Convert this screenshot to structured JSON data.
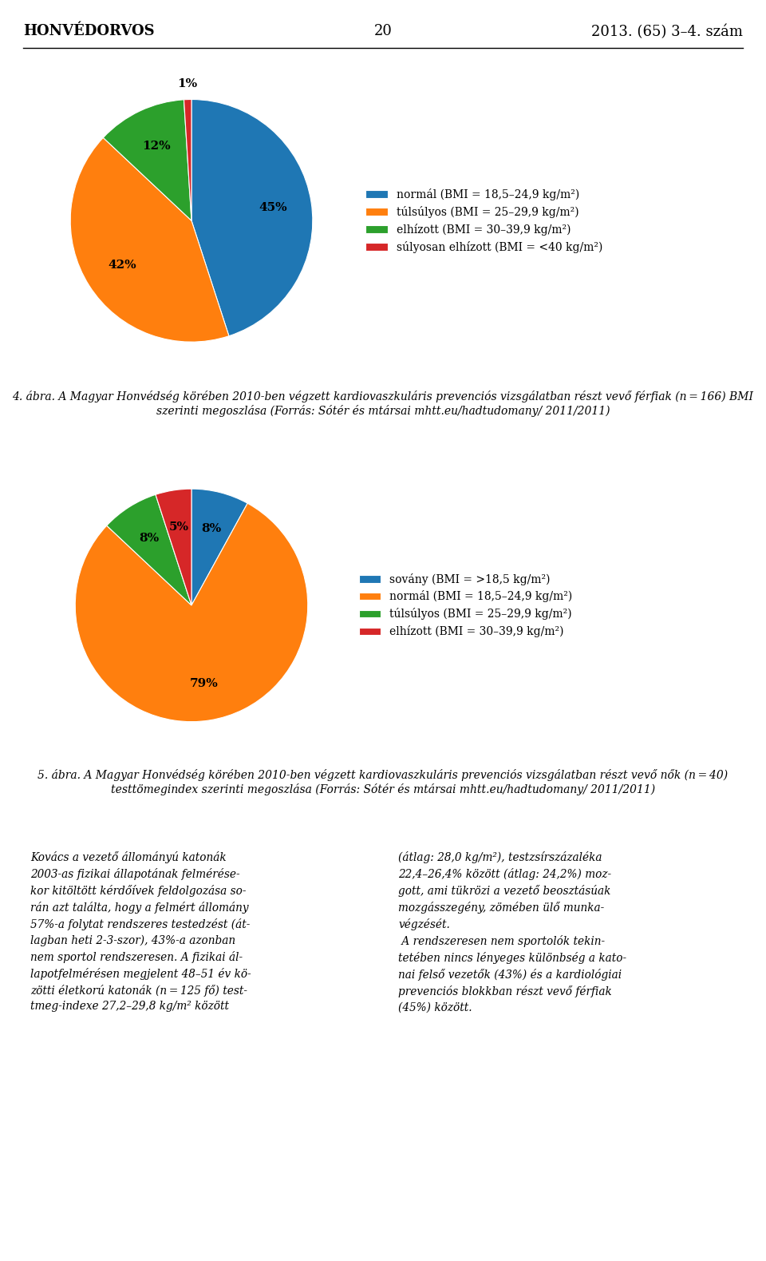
{
  "chart_data": [
    {
      "type": "pie",
      "title": "4. ábra. A Magyar Honvédség körében 2010-ben végzett kardiovaszkuláris prevenciós vizsgálatban részt vevő férfiak (n = 166) BMI szerinti megoszlása (Forrás: Sótér és mtársai mhtt.eu/hadtudomany/ 2011/2011)",
      "annotations": [
        "HONVÉDORVOS",
        "20",
        "2013. (65) 3–4. szám"
      ],
      "categories": [
        "normál (BMI = 18,5–24,9 kg/m²)",
        "túlsúlyos (BMI = 25–29,9 kg/m²)",
        "elhízott (BMI = 30–39,9 kg/m²)",
        "súlyosan elhízott (BMI = <40 kg/m²)"
      ],
      "values": [
        45,
        42,
        12,
        1
      ],
      "value_labels": [
        "45%",
        "42%",
        "12%",
        "1%"
      ],
      "data_labels": true,
      "legend": "center left"
    },
    {
      "type": "pie",
      "title": "5. ábra. A Magyar Honvédség körében 2010-ben végzett kardiovaszkuláris prevenciós vizsgálatban részt vevő nők (n = 40) testtömegindex szerinti megoszlása (Forrás: Sótér és mtársai mhtt.eu/hadtudomany/ 2011/2011)",
      "annotations": [
        "Kovács a vezető állományú katonák\n2003-as fizikai állapotának felmérése-\nkor kitöltött kérdőívek feldolgozása so-\nrán azt találta, hogy a felmért állomány\n57%-a folytat rendszeres testedzést (át-\nlagban heti 2-3-szor), 43%-a azonban\nnem sportol rendszeresen. A fizikai ál-\nlapotfelmérésen megjelent 48–51 év kö-\nzötti életkorú katonák (n = 125 fő) test-\ntmeg-indexe 27,2–29,8 kg/m² között",
        "(átlag: 28,0 kg/m²), testzsírszázaléka\n22,4–26,4% között (átlag: 24,2%) moz-\ngott, ami tükrözi a vezető beosztásúak\nmozgásszegény, zömében ülő munka-\nvégzését.\n A rendszeresen nem sportolók tekin-\ntetében nincs lényeges különbség a kato-\nnai felső vezetők (43%) és a kardiológiai\nprevenciós blokkban részt vevő férfiak\n(45%) között."
      ],
      "categories": [
        "sovány (BMI = >18,5 kg/m²)",
        "normál (BMI = 18,5–24,9 kg/m²)",
        "túlsúlyos (BMI = 25–29,9 kg/m²)",
        "elhízott (BMI = 30–39,9 kg/m²)"
      ],
      "values": [
        8,
        79,
        8,
        5
      ],
      "value_labels": [
        "8%",
        "79%",
        "8%",
        "5%"
      ],
      "data_labels": true,
      "legend": "center left"
    }
  ]
}
